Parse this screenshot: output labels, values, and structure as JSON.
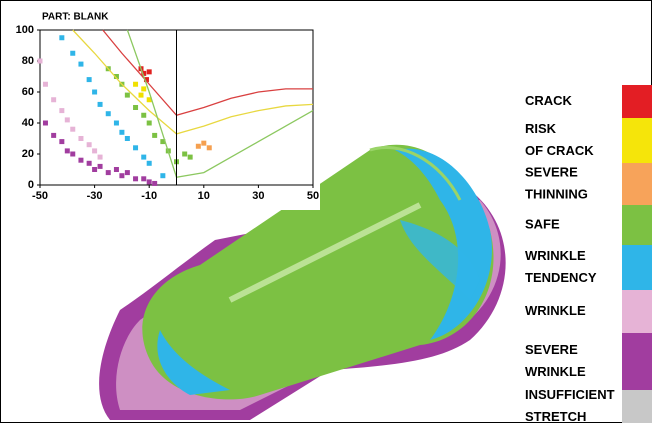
{
  "chart_data": {
    "type": "scatter",
    "title": "PART: BLANK",
    "xlim": [
      -50,
      50
    ],
    "xticks": [
      -50,
      -30,
      -10,
      10,
      30,
      50
    ],
    "ylim": [
      0,
      100
    ],
    "yticks": [
      0,
      20,
      40,
      60,
      80,
      100
    ],
    "vline": 0,
    "series": [
      {
        "color": "#a13d9f",
        "x": [
          -48,
          -45,
          -42,
          -40,
          -38,
          -35,
          -32,
          -30,
          -28,
          -25,
          -22,
          -20,
          -18,
          -15,
          -12,
          -10,
          -8
        ],
        "y": [
          40,
          32,
          28,
          22,
          20,
          16,
          14,
          10,
          12,
          8,
          10,
          6,
          8,
          4,
          4,
          2,
          1
        ]
      },
      {
        "color": "#e6b3d6",
        "x": [
          -50,
          -48,
          -45,
          -42,
          -40,
          -38,
          -35,
          -32,
          -30,
          -28
        ],
        "y": [
          80,
          65,
          55,
          48,
          42,
          36,
          30,
          26,
          22,
          18
        ]
      },
      {
        "color": "#2fb5e8",
        "x": [
          -42,
          -38,
          -35,
          -32,
          -30,
          -28,
          -25,
          -22,
          -20,
          -18,
          -15,
          -12,
          -10,
          -5
        ],
        "y": [
          95,
          85,
          78,
          68,
          60,
          52,
          46,
          40,
          34,
          30,
          24,
          18,
          14,
          6
        ]
      },
      {
        "color": "#7cc143",
        "x": [
          -25,
          -22,
          -20,
          -18,
          -15,
          -12,
          -10,
          -8,
          -5,
          -3,
          0,
          3,
          5
        ],
        "y": [
          75,
          70,
          65,
          58,
          50,
          45,
          40,
          32,
          28,
          22,
          15,
          20,
          18
        ]
      },
      {
        "color": "#f0e000",
        "x": [
          -15,
          -13,
          -12,
          -10
        ],
        "y": [
          65,
          58,
          62,
          55
        ]
      },
      {
        "color": "#e0201e",
        "x": [
          -13,
          -12,
          -11,
          -10
        ],
        "y": [
          75,
          72,
          68,
          73
        ]
      },
      {
        "color": "#f5a050",
        "x": [
          8,
          10,
          12
        ],
        "y": [
          25,
          27,
          24
        ]
      }
    ],
    "curves": [
      {
        "color": "#d94040",
        "x": [
          -27,
          -20,
          -10,
          0,
          10,
          20,
          30,
          40,
          50
        ],
        "y": [
          100,
          85,
          65,
          45,
          50,
          56,
          60,
          62,
          62
        ]
      },
      {
        "color": "#e8d840",
        "x": [
          -38,
          -30,
          -20,
          -10,
          0,
          10,
          20,
          30,
          40,
          50
        ],
        "y": [
          100,
          85,
          65,
          48,
          33,
          38,
          44,
          48,
          51,
          52
        ]
      },
      {
        "color": "#8cc860",
        "x": [
          -18,
          -10,
          0,
          10,
          20,
          30,
          40,
          50
        ],
        "y": [
          100,
          60,
          5,
          8,
          18,
          28,
          38,
          48
        ]
      }
    ]
  },
  "legend": [
    {
      "lines": [
        "CRACK"
      ],
      "color": "#e31e24"
    },
    {
      "lines": [
        "RISK",
        "OF CRACK"
      ],
      "color": "#f5e50a"
    },
    {
      "lines": [
        "SEVERE",
        "THINNING"
      ],
      "color": "#f7a35a"
    },
    {
      "lines": [
        "SAFE"
      ],
      "color": "#7cc143"
    },
    {
      "lines": [
        "WRINKLE",
        "TENDENCY"
      ],
      "color": "#2fb5e8"
    },
    {
      "lines": [
        "WRINKLE"
      ],
      "color": "#e6b3d6"
    },
    {
      "lines": [
        "SEVERE",
        "WRINKLE"
      ],
      "color": "#a13d9f"
    },
    {
      "lines": [
        "INSUFFICIENT",
        "STRETCH"
      ],
      "color": "#c8c8c8"
    }
  ]
}
